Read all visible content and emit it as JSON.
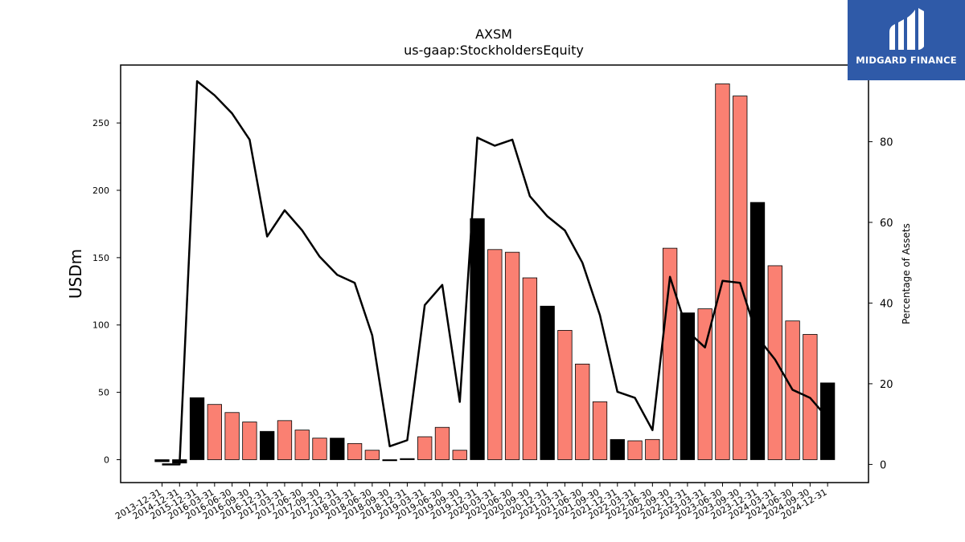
{
  "chart_data": {
    "type": "bar",
    "title": "AXSM",
    "subtitle": "us-gaap:StockholdersEquity",
    "ylabel": "USDm",
    "y2label": "Percentage of Assets",
    "ylim": [
      -17,
      293
    ],
    "y2lim": [
      -4.5,
      99
    ],
    "yticks": [
      0,
      50,
      100,
      150,
      200,
      250
    ],
    "y2ticks": [
      0,
      20,
      40,
      60,
      80
    ],
    "categories": [
      "2013-12-31",
      "2014-12-31",
      "2015-12-31",
      "2016-03-31",
      "2016-06-30",
      "2016-09-30",
      "2016-12-31",
      "2017-03-31",
      "2017-06-30",
      "2017-09-30",
      "2017-12-31",
      "2018-03-31",
      "2018-06-30",
      "2018-09-30",
      "2018-12-31",
      "2019-03-31",
      "2019-06-30",
      "2019-09-30",
      "2019-12-31",
      "2020-03-31",
      "2020-06-30",
      "2020-09-30",
      "2020-12-31",
      "2021-03-31",
      "2021-06-30",
      "2021-09-30",
      "2021-12-31",
      "2022-03-31",
      "2022-06-30",
      "2022-09-30",
      "2022-12-31",
      "2023-03-31",
      "2023-06-30",
      "2023-09-30",
      "2023-12-31",
      "2024-03-31",
      "2024-06-30",
      "2024-09-30",
      "2024-12-31"
    ],
    "series": [
      {
        "kind": "bar",
        "axis": "left",
        "values": [
          -1.5,
          -2.5,
          46,
          41,
          35,
          28,
          21,
          29,
          22,
          16,
          16,
          12,
          7,
          -0.8,
          0.8,
          17,
          24,
          7,
          179,
          156,
          154,
          135,
          114,
          96,
          71,
          43,
          15,
          14,
          15,
          157,
          109,
          112,
          279,
          270,
          191,
          144,
          103,
          93,
          57
        ],
        "colors": [
          "#000000",
          "#000000",
          "#000000",
          "#fa8072",
          "#fa8072",
          "#fa8072",
          "#000000",
          "#fa8072",
          "#fa8072",
          "#fa8072",
          "#000000",
          "#fa8072",
          "#fa8072",
          "#000000",
          "#000000",
          "#fa8072",
          "#fa8072",
          "#fa8072",
          "#000000",
          "#fa8072",
          "#fa8072",
          "#fa8072",
          "#000000",
          "#fa8072",
          "#fa8072",
          "#fa8072",
          "#000000",
          "#fa8072",
          "#fa8072",
          "#fa8072",
          "#000000",
          "#fa8072",
          "#fa8072",
          "#fa8072",
          "#000000",
          "#fa8072",
          "#fa8072",
          "#fa8072",
          "#000000"
        ]
      },
      {
        "kind": "line",
        "axis": "right",
        "color": "#000000",
        "values": [
          0,
          0,
          95,
          91.5,
          87,
          80.5,
          56.5,
          63,
          58,
          51.5,
          47,
          45,
          32,
          4.5,
          6,
          39.5,
          44.5,
          15.5,
          81,
          79,
          80.5,
          66.5,
          61.5,
          58,
          50,
          37,
          18,
          16.5,
          8.5,
          46.5,
          33,
          29,
          45.5,
          45,
          31.5,
          26,
          18.5,
          16.5,
          11.5
        ]
      }
    ],
    "grid": false,
    "legend": "none"
  },
  "logo": {
    "text": "MIDGARD FINANCE",
    "bg_color": "#2f5aa8"
  }
}
